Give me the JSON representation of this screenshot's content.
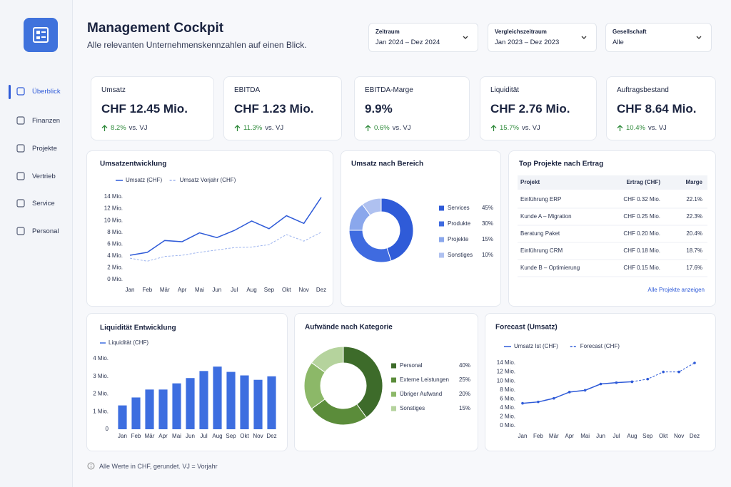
{
  "sidebar": {
    "nav": [
      "Überblick",
      "Finanzen",
      "Projekte",
      "Vertrieb",
      "Service",
      "Personal"
    ]
  },
  "header": {
    "title": "Management Cockpit",
    "subtitle": "Alle relevanten Unternehmenskennzahlen auf einen Blick.",
    "filters": [
      {
        "label": "Zeitraum",
        "value": "Jan 2024 – Dez 2024"
      },
      {
        "label": "Vergleichszeitraum",
        "value": "Jan 2023 – Dez 2023"
      },
      {
        "label": "Gesellschaft",
        "value": "Alle"
      }
    ]
  },
  "kpis": [
    {
      "label": "Umsatz",
      "value": "CHF 12.45 Mio.",
      "change": "8.2%",
      "suffix": "vs. VJ"
    },
    {
      "label": "EBITDA",
      "value": "CHF 1.23 Mio.",
      "change": "11.3%",
      "suffix": "vs. VJ"
    },
    {
      "label": "EBITDA-Marge",
      "value": "9.9%",
      "change": "0.6%",
      "suffix": "vs. VJ"
    },
    {
      "label": "Liquidität",
      "value": "CHF 2.76 Mio.",
      "change": "15.7%",
      "suffix": "vs. VJ"
    },
    {
      "label": "Auftragsbestand",
      "value": "CHF 8.64 Mio.",
      "change": "10.4%",
      "suffix": "vs. VJ"
    }
  ],
  "chart_data": [
    {
      "type": "line",
      "title": "Umsatzentwicklung",
      "categories": [
        "Jan",
        "Feb",
        "Mär",
        "Apr",
        "Mai",
        "Jun",
        "Jul",
        "Aug",
        "Sep",
        "Okt",
        "Nov",
        "Dez"
      ],
      "series": [
        {
          "name": "Umsatz (CHF)",
          "color": "#2f5bd8",
          "style": "solid",
          "values": [
            4.1,
            4.6,
            6.6,
            6.4,
            7.9,
            7.1,
            8.3,
            9.9,
            8.6,
            10.8,
            9.5,
            13.9
          ]
        },
        {
          "name": "Umsatz Vorjahr (CHF)",
          "color": "#9db4ee",
          "style": "dashed",
          "values": [
            3.6,
            3.1,
            3.9,
            4.1,
            4.6,
            5.0,
            5.4,
            5.5,
            5.9,
            7.6,
            6.5,
            8.0
          ]
        }
      ],
      "ylim": [
        0,
        14
      ],
      "yticks": [
        {
          "value": 0,
          "label": "0 Mio."
        },
        {
          "value": 2,
          "label": "2 Mio."
        },
        {
          "value": 4,
          "label": "4 Mio."
        },
        {
          "value": 6,
          "label": "6 Mio."
        },
        {
          "value": 8,
          "label": "8 Mio."
        },
        {
          "value": 10,
          "label": "10 Mio."
        },
        {
          "value": 12,
          "label": "12 Mio."
        },
        {
          "value": 14,
          "label": "14 Mio."
        }
      ],
      "grid": false,
      "markers": false
    },
    {
      "type": "pie",
      "title": "Umsatz nach Bereich",
      "categories": [
        "Services",
        "Produkte",
        "Projekte",
        "Sonstiges"
      ],
      "values": [
        45,
        30,
        15,
        10
      ],
      "value_labels": [
        "45%",
        "30%",
        "15%",
        "10%"
      ],
      "colors": [
        "#2f5bd8",
        "#3f6be0",
        "#8aa7ec",
        "#afc1f0"
      ]
    },
    {
      "type": "bar",
      "title": "Liquidität Entwicklung",
      "categories": [
        "Jan",
        "Feb",
        "Mär",
        "Apr",
        "Mai",
        "Jun",
        "Jul",
        "Aug",
        "Sep",
        "Okt",
        "Nov",
        "Dez"
      ],
      "series": [
        {
          "name": "Liquidität (CHF)",
          "color": "#3d6ee0",
          "values": [
            1.35,
            1.8,
            2.25,
            2.25,
            2.6,
            2.9,
            3.3,
            3.55,
            3.25,
            3.05,
            2.8,
            3.0
          ]
        }
      ],
      "ylim": [
        0,
        4
      ],
      "yticks": [
        0,
        {
          "value": 1,
          "label": "1 Mio."
        },
        {
          "value": 2,
          "label": "2 Mio."
        },
        {
          "value": 3,
          "label": "3 Mio."
        },
        {
          "value": 4,
          "label": "4 Mio."
        }
      ],
      "grid": false
    },
    {
      "type": "pie",
      "title": "Aufwände nach Kategorie",
      "categories": [
        "Personal",
        "Externe Leistungen",
        "Übriger Aufwand",
        "Sonstiges"
      ],
      "values": [
        40,
        25,
        20,
        15
      ],
      "value_labels": [
        "40%",
        "25%",
        "20%",
        "15%"
      ],
      "colors": [
        "#3d6b2a",
        "#5b8c3a",
        "#8cb868",
        "#b5d39d"
      ]
    },
    {
      "type": "line",
      "title": "Forecast (Umsatz)",
      "categories": [
        "Jan",
        "Feb",
        "Mär",
        "Apr",
        "Mai",
        "Jun",
        "Jul",
        "Aug",
        "Sep",
        "Okt",
        "Nov",
        "Dez"
      ],
      "series": [
        {
          "name": "Umsatz Ist (CHF)",
          "color": "#2f5bd8",
          "style": "solid",
          "values": [
            5.0,
            5.3,
            6.1,
            7.5,
            7.9,
            9.3,
            9.6,
            9.8,
            null,
            null,
            null,
            null
          ]
        },
        {
          "name": "Forecast (CHF)",
          "color": "#2f5bd8",
          "style": "dashed",
          "values": [
            null,
            null,
            null,
            null,
            null,
            null,
            null,
            9.8,
            10.4,
            12.0,
            12.0,
            14.0
          ]
        }
      ],
      "ylim": [
        0,
        14
      ],
      "yticks": [
        {
          "value": 0,
          "label": "0 Mio."
        },
        {
          "value": 2,
          "label": "2 Mio."
        },
        {
          "value": 4,
          "label": "4 Mio."
        },
        {
          "value": 6,
          "label": "6 Mio."
        },
        {
          "value": 8,
          "label": "8 Mio."
        },
        {
          "value": 10,
          "label": "10 Mio."
        },
        {
          "value": 12,
          "label": "12 Mio."
        },
        {
          "value": 14,
          "label": "14 Mio."
        }
      ],
      "grid": false,
      "markers": true
    }
  ],
  "table": {
    "title": "Top Projekte nach Ertrag",
    "columns": [
      "Projekt",
      "Ertrag (CHF)",
      "Marge"
    ],
    "rows": [
      [
        "Einführung ERP",
        "CHF 0.32 Mio.",
        "22.1%"
      ],
      [
        "Kunde A – Migration",
        "CHF 0.25 Mio.",
        "22.3%"
      ],
      [
        "Beratung Paket",
        "CHF 0.20 Mio.",
        "20.4%"
      ],
      [
        "Einführung CRM",
        "CHF 0.18 Mio.",
        "18.7%"
      ],
      [
        "Kunde B – Optimierung",
        "CHF 0.15 Mio.",
        "17.6%"
      ]
    ],
    "link": "Alle Projekte anzeigen"
  },
  "footer": "Alle Werte in CHF, gerundet. VJ = Vorjahr"
}
